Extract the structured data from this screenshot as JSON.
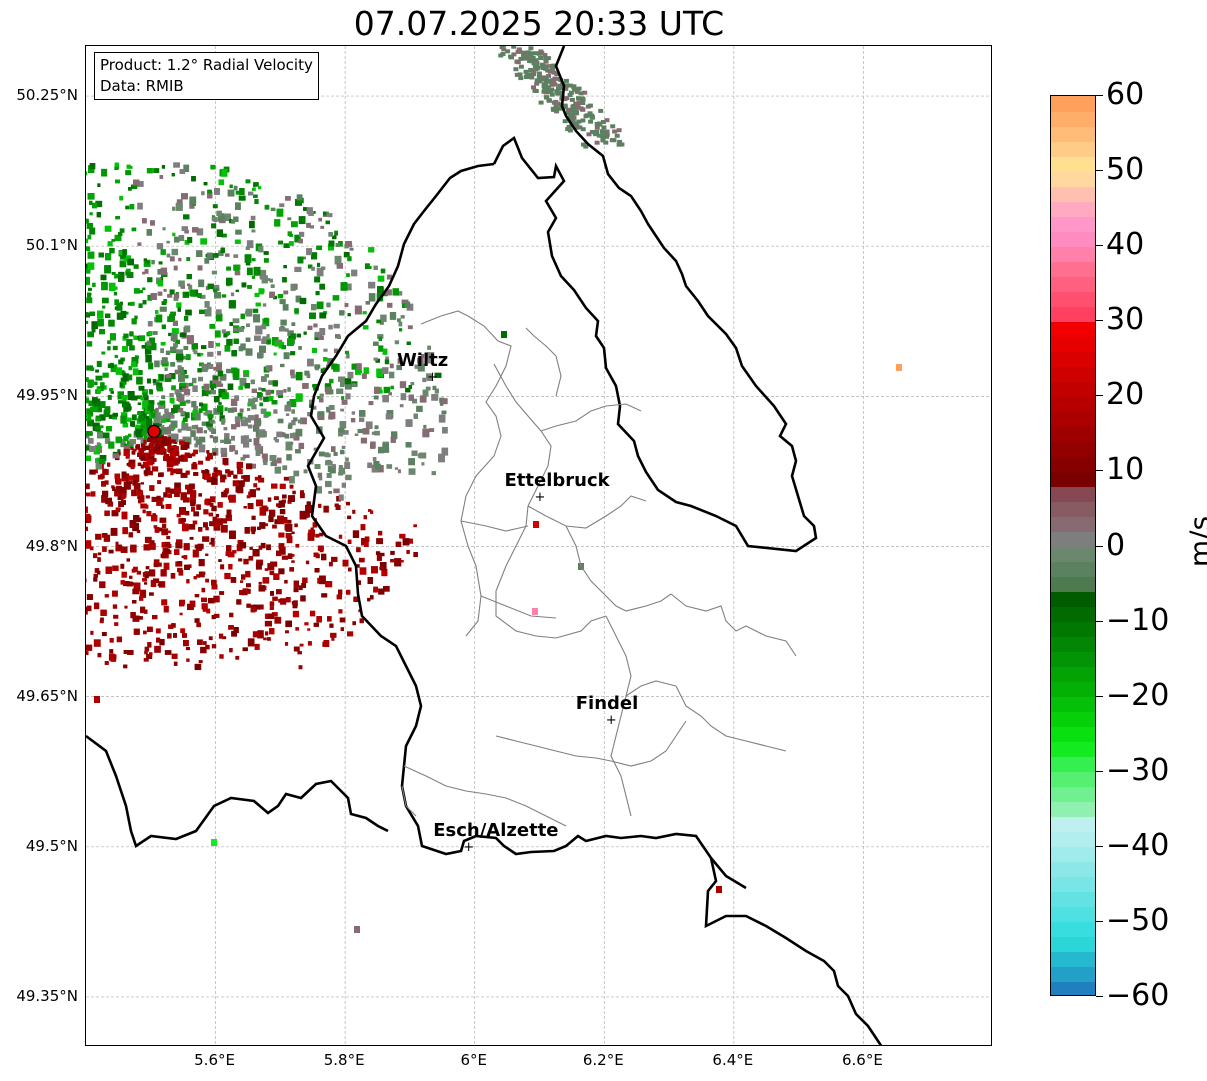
{
  "title": "07.07.2025 20:33 UTC",
  "info_box": {
    "product": "Product: 1.2° Radial Velocity",
    "data": "Data: RMIB"
  },
  "map": {
    "lon_range": [
      5.4,
      6.8
    ],
    "lat_range": [
      49.3,
      50.3
    ],
    "lat_ticks": [
      {
        "value": 50.25,
        "label": "50.25°N"
      },
      {
        "value": 50.1,
        "label": "50.1°N"
      },
      {
        "value": 49.95,
        "label": "49.95°N"
      },
      {
        "value": 49.8,
        "label": "49.8°N"
      },
      {
        "value": 49.65,
        "label": "49.65°N"
      },
      {
        "value": 49.5,
        "label": "49.5°N"
      },
      {
        "value": 49.35,
        "label": "49.35°N"
      }
    ],
    "lon_ticks": [
      {
        "value": 5.6,
        "label": "5.6°E"
      },
      {
        "value": 5.8,
        "label": "5.8°E"
      },
      {
        "value": 6.0,
        "label": "6°E"
      },
      {
        "value": 6.2,
        "label": "6.2°E"
      },
      {
        "value": 6.4,
        "label": "6.4°E"
      },
      {
        "value": 6.6,
        "label": "6.6°E"
      }
    ],
    "radar_site": {
      "lon": 5.505,
      "lat": 49.915
    },
    "cities": [
      {
        "name": "Wiltz",
        "lon": 5.934,
        "lat": 49.967
      },
      {
        "name": "Ettelbruck",
        "lon": 6.1,
        "lat": 49.847
      },
      {
        "name": "Findel",
        "lon": 6.21,
        "lat": 49.625
      },
      {
        "name": "Esch/Alzette",
        "lon": 5.99,
        "lat": 49.498
      }
    ],
    "gridlines": true
  },
  "colorbar": {
    "unit": "m/s",
    "min": -60,
    "max": 60,
    "tick_values": [
      60,
      50,
      40,
      30,
      20,
      10,
      0,
      -10,
      -20,
      -30,
      -40,
      -50,
      -60
    ],
    "tick_labels": [
      "60",
      "50",
      "40",
      "30",
      "20",
      "10",
      "0",
      "−10",
      "−20",
      "−30",
      "−40",
      "−50",
      "−60"
    ],
    "segments": [
      {
        "from": -60,
        "to": -58,
        "color": "#1f7fbf"
      },
      {
        "from": -58,
        "to": -56,
        "color": "#22a0c8"
      },
      {
        "from": -56,
        "to": -54,
        "color": "#25b8cf"
      },
      {
        "from": -54,
        "to": -52,
        "color": "#2ad6d8"
      },
      {
        "from": -52,
        "to": -50,
        "color": "#38dde0"
      },
      {
        "from": -50,
        "to": -48,
        "color": "#4fe0e2"
      },
      {
        "from": -48,
        "to": -46,
        "color": "#63e2e3"
      },
      {
        "from": -46,
        "to": -44,
        "color": "#78e5e6"
      },
      {
        "from": -44,
        "to": -42,
        "color": "#8ce8e8"
      },
      {
        "from": -42,
        "to": -40,
        "color": "#a0ebeb"
      },
      {
        "from": -40,
        "to": -38,
        "color": "#b2eeee"
      },
      {
        "from": -38,
        "to": -36,
        "color": "#bff0f0"
      },
      {
        "from": -36,
        "to": -34,
        "color": "#90f0b0"
      },
      {
        "from": -34,
        "to": -32,
        "color": "#70f090"
      },
      {
        "from": -32,
        "to": -30,
        "color": "#55ef72"
      },
      {
        "from": -30,
        "to": -28,
        "color": "#35ee50"
      },
      {
        "from": -28,
        "to": -26,
        "color": "#14ea20"
      },
      {
        "from": -26,
        "to": -24,
        "color": "#08e010"
      },
      {
        "from": -24,
        "to": -22,
        "color": "#05d00a"
      },
      {
        "from": -22,
        "to": -20,
        "color": "#04c008"
      },
      {
        "from": -20,
        "to": -18,
        "color": "#03b006"
      },
      {
        "from": -18,
        "to": -16,
        "color": "#03a205"
      },
      {
        "from": -16,
        "to": -14,
        "color": "#029404"
      },
      {
        "from": -14,
        "to": -12,
        "color": "#028603"
      },
      {
        "from": -12,
        "to": -10,
        "color": "#017802"
      },
      {
        "from": -10,
        "to": -8,
        "color": "#016a01"
      },
      {
        "from": -8,
        "to": -6,
        "color": "#015c00"
      },
      {
        "from": -6,
        "to": -4,
        "color": "#4e7a50"
      },
      {
        "from": -4,
        "to": -2,
        "color": "#5c8160"
      },
      {
        "from": -2,
        "to": 0,
        "color": "#6b876e"
      },
      {
        "from": 0,
        "to": 2,
        "color": "#7e7e7e"
      },
      {
        "from": 2,
        "to": 4,
        "color": "#866c72"
      },
      {
        "from": 4,
        "to": 6,
        "color": "#865b62"
      },
      {
        "from": 6,
        "to": 8,
        "color": "#864852"
      },
      {
        "from": 8,
        "to": 10,
        "color": "#7a0000"
      },
      {
        "from": 10,
        "to": 12,
        "color": "#860000"
      },
      {
        "from": 12,
        "to": 14,
        "color": "#920000"
      },
      {
        "from": 14,
        "to": 16,
        "color": "#9e0000"
      },
      {
        "from": 16,
        "to": 18,
        "color": "#aa0000"
      },
      {
        "from": 18,
        "to": 20,
        "color": "#b60000"
      },
      {
        "from": 20,
        "to": 22,
        "color": "#c20000"
      },
      {
        "from": 22,
        "to": 24,
        "color": "#ce0000"
      },
      {
        "from": 24,
        "to": 26,
        "color": "#da0000"
      },
      {
        "from": 26,
        "to": 28,
        "color": "#e60000"
      },
      {
        "from": 28,
        "to": 30,
        "color": "#f20000"
      },
      {
        "from": 30,
        "to": 32,
        "color": "#ff4060"
      },
      {
        "from": 32,
        "to": 34,
        "color": "#ff5070"
      },
      {
        "from": 34,
        "to": 36,
        "color": "#ff6080"
      },
      {
        "from": 36,
        "to": 38,
        "color": "#ff7090"
      },
      {
        "from": 38,
        "to": 40,
        "color": "#ff80a8"
      },
      {
        "from": 40,
        "to": 42,
        "color": "#ff8cc0"
      },
      {
        "from": 42,
        "to": 44,
        "color": "#ff98c8"
      },
      {
        "from": 44,
        "to": 46,
        "color": "#ffaac0"
      },
      {
        "from": 46,
        "to": 48,
        "color": "#ffc0b0"
      },
      {
        "from": 48,
        "to": 50,
        "color": "#ffd8a0"
      },
      {
        "from": 50,
        "to": 52,
        "color": "#ffe090"
      },
      {
        "from": 52,
        "to": 54,
        "color": "#ffcc88"
      },
      {
        "from": 54,
        "to": 56,
        "color": "#ffbc78"
      },
      {
        "from": 56,
        "to": 58,
        "color": "#ffae6a"
      },
      {
        "from": 58,
        "to": 60,
        "color": "#ffa05c"
      }
    ]
  },
  "colors": {
    "border": "#000000",
    "canton_lines": "#808080",
    "grid": "#b0b0b0",
    "radar_marker": "#e00000"
  }
}
